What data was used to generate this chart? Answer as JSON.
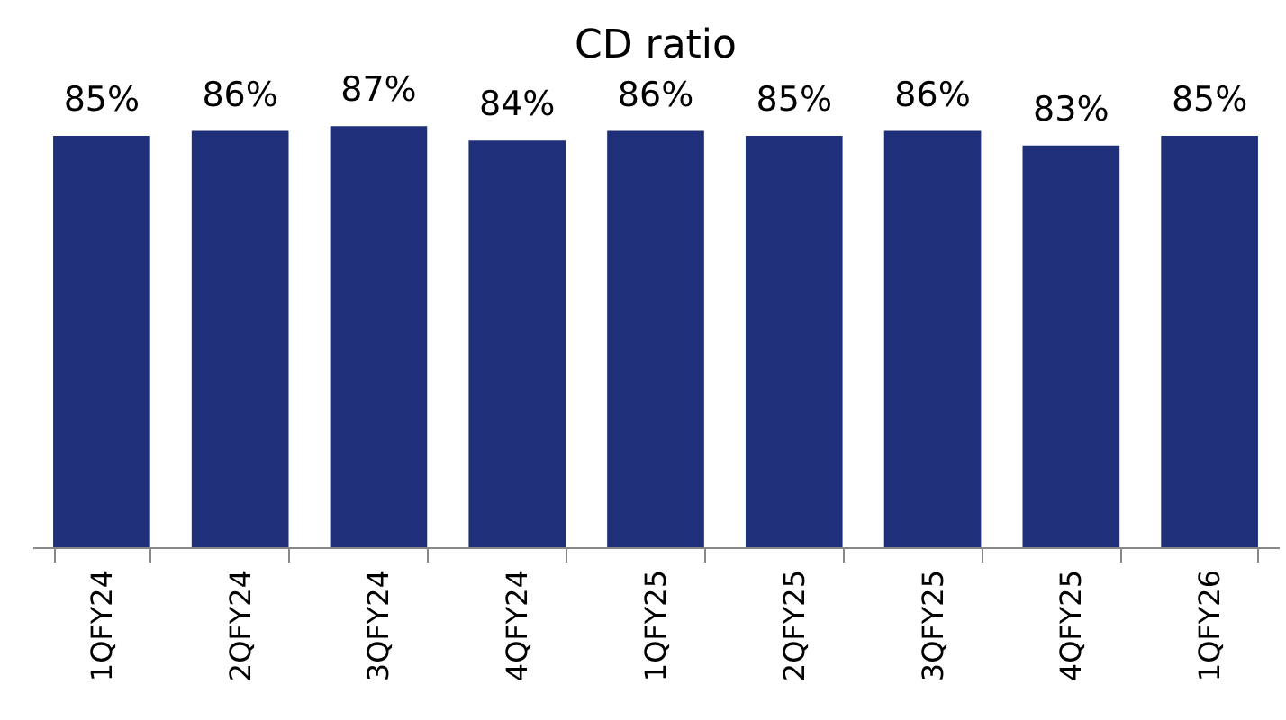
{
  "chart_data": {
    "type": "bar",
    "title": "CD ratio",
    "categories": [
      "1QFY24",
      "2QFY24",
      "3QFY24",
      "4QFY24",
      "1QFY25",
      "2QFY25",
      "3QFY25",
      "4QFY25",
      "1QFY26"
    ],
    "values": [
      85,
      86,
      87,
      84,
      86,
      85,
      86,
      83,
      85
    ],
    "value_labels": [
      "85%",
      "86%",
      "87%",
      "84%",
      "86%",
      "85%",
      "86%",
      "83%",
      "85%"
    ],
    "color": "#1f2f7a"
  }
}
